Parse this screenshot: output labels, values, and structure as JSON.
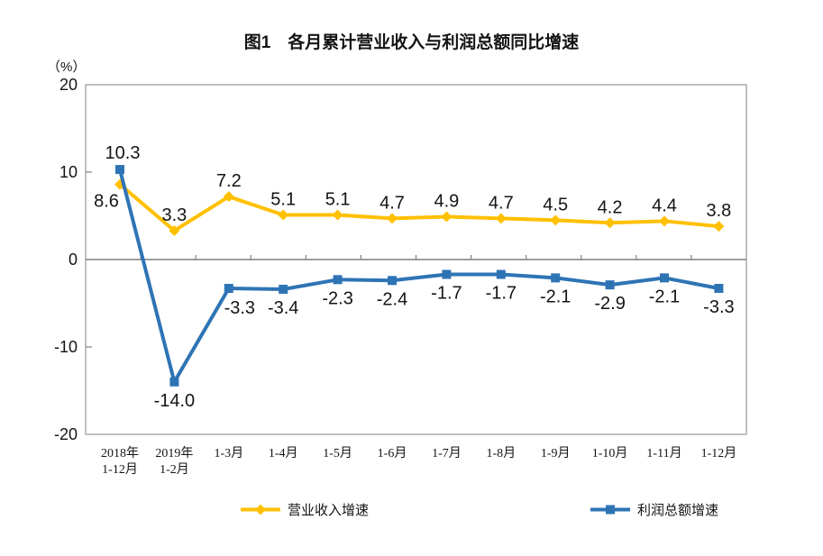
{
  "chart_data": {
    "type": "line",
    "title": "图1　各月累计营业收入与利润总额同比增速",
    "unit": "（%）",
    "categories": [
      "2018年\n1-12月",
      "2019年\n1-2月",
      "1-3月",
      "1-4月",
      "1-5月",
      "1-6月",
      "1-7月",
      "1-8月",
      "1-9月",
      "1-10月",
      "1-11月",
      "1-12月"
    ],
    "series": [
      {
        "name": "营业收入增速",
        "color": "#FFC000",
        "marker": "diamond",
        "values": [
          8.6,
          3.3,
          7.2,
          5.1,
          5.1,
          4.7,
          4.9,
          4.7,
          4.5,
          4.2,
          4.4,
          3.8
        ],
        "labels": [
          "8.6",
          "3.3",
          "7.2",
          "5.1",
          "5.1",
          "4.7",
          "4.9",
          "4.7",
          "4.5",
          "4.2",
          "4.4",
          "3.8"
        ]
      },
      {
        "name": "利润总额增速",
        "color": "#2E74B5",
        "marker": "square",
        "values": [
          10.3,
          -14.0,
          -3.3,
          -3.4,
          -2.3,
          -2.4,
          -1.7,
          -1.7,
          -2.1,
          -2.9,
          -2.1,
          -3.3
        ],
        "labels": [
          "10.3",
          "-14.0",
          "-3.3",
          "-3.4",
          "-2.3",
          "-2.4",
          "-1.7",
          "-1.7",
          "-2.1",
          "-2.9",
          "-2.1",
          "-3.3"
        ]
      }
    ],
    "ylim": [
      -20,
      20
    ],
    "yticks": [
      20,
      10,
      0,
      -10,
      -20
    ],
    "grid": false,
    "legend_position": "bottom",
    "colors": {
      "frame": "#A6A6A6",
      "zero_line": "#7F7F7F",
      "tick": "#7F7F7F",
      "text": "#141414"
    }
  }
}
